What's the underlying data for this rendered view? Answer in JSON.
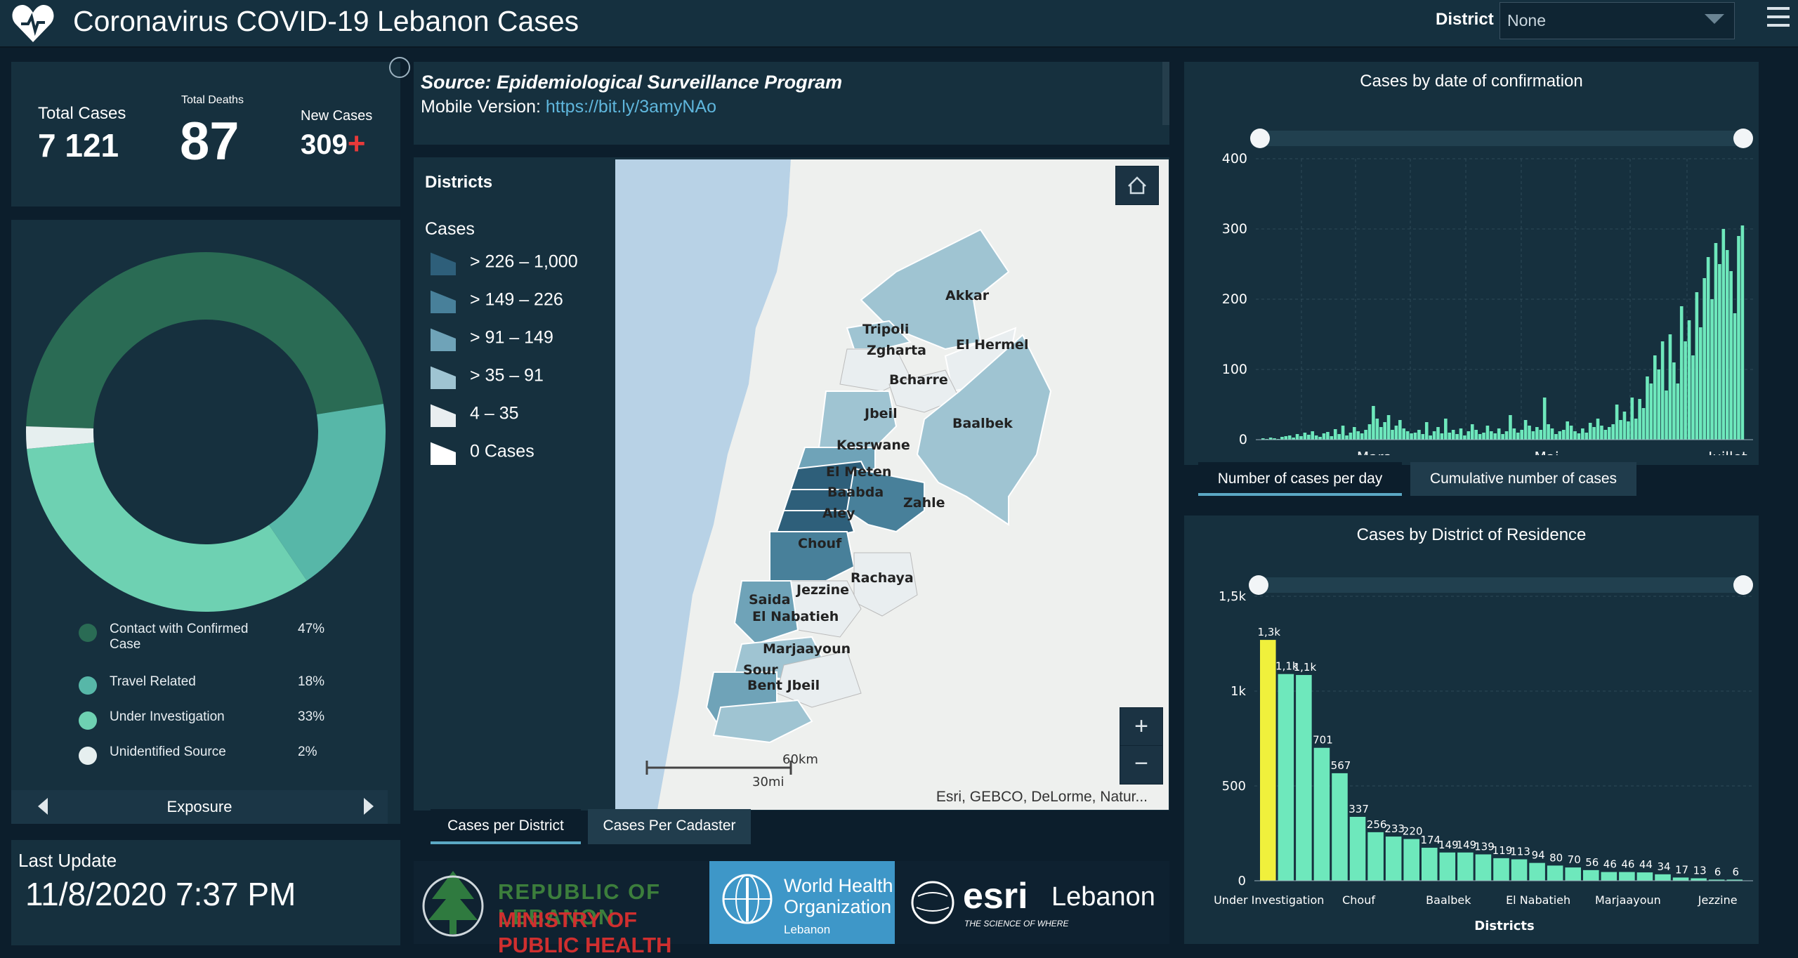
{
  "header": {
    "title": "Coronavirus COVID-19 Lebanon Cases",
    "district_label": "District",
    "district_value": "None"
  },
  "stats": {
    "total_cases_label": "Total Cases",
    "total_cases": "7 121",
    "total_deaths_label": "Total Deaths",
    "total_deaths": "87",
    "new_cases_label": "New Cases",
    "new_cases": "309",
    "new_cases_mark": "+"
  },
  "exposure": {
    "title": "Exposure",
    "items": [
      {
        "label": "Contact with Confirmed Case",
        "pct": "47%",
        "color": "#2a6b54"
      },
      {
        "label": "Travel Related",
        "pct": "18%",
        "color": "#57b7a8"
      },
      {
        "label": "Under Investigation",
        "pct": "33%",
        "color": "#6ed1b2"
      },
      {
        "label": "Unidentified Source",
        "pct": "2%",
        "color": "#e6efef"
      }
    ]
  },
  "last_update": {
    "label": "Last Update",
    "value": "11/8/2020 7:37 PM"
  },
  "source": {
    "title": "Source: Epidemiological Surveillance Program",
    "mobile_label": "Mobile Version:",
    "mobile_link": "https://bit.ly/3amyNAo"
  },
  "map": {
    "legend_title": "Districts",
    "legend_sub": "Cases",
    "legend": [
      {
        "label": "> 226 – 1,000",
        "color": "#2e5f7a"
      },
      {
        "label": "> 149 – 226",
        "color": "#48809a"
      },
      {
        "label": "> 91 – 149",
        "color": "#6fa3b8"
      },
      {
        "label": "> 35 – 91",
        "color": "#9fc4d2"
      },
      {
        "label": "4 – 35",
        "color": "#e9eef0"
      },
      {
        "label": "0 Cases",
        "color": "#ffffff"
      }
    ],
    "districts": [
      "Akkar",
      "Tripoli",
      "El Hermel",
      "Zgharta",
      "Bcharre",
      "Jbeil",
      "Baalbek",
      "Kesrwane",
      "El Meten",
      "Baabda",
      "Zahle",
      "Aley",
      "Chouf",
      "Rachaya",
      "Jezzine",
      "Saida",
      "El Nabatieh",
      "Marjaayoun",
      "Sour",
      "Bent Jbeil"
    ],
    "scale_km": "60km",
    "scale_mi": "30mi",
    "attribution": "Esri, GEBCO, DeLorme, Natur...",
    "zoom_in": "+",
    "zoom_out": "−",
    "tabs": [
      "Cases per District",
      "Cases Per Cadaster"
    ]
  },
  "logos": {
    "moh_line1": "REPUBLIC OF LEBANON",
    "moh_line2": "MINISTRY OF PUBLIC HEALTH",
    "who_line1": "World Health",
    "who_line2": "Organization",
    "who_line3": "Lebanon",
    "esri_word": "esri",
    "esri_country": "Lebanon",
    "esri_tag": "THE SCIENCE OF WHERE"
  },
  "chart_data": [
    {
      "type": "bar",
      "title": "Cases by  date of confirmation",
      "ylim": [
        0,
        400
      ],
      "y_ticks": [
        "400",
        "300",
        "200",
        "100",
        "0"
      ],
      "x_ticks": [
        "Mars",
        "Mai",
        "Juillet"
      ],
      "values": [
        2,
        1,
        3,
        2,
        1,
        4,
        5,
        6,
        3,
        8,
        5,
        10,
        7,
        12,
        6,
        4,
        9,
        11,
        5,
        15,
        8,
        20,
        6,
        10,
        18,
        12,
        9,
        14,
        22,
        48,
        30,
        18,
        25,
        35,
        14,
        20,
        28,
        16,
        12,
        9,
        10,
        14,
        8,
        25,
        6,
        12,
        18,
        9,
        30,
        10,
        14,
        8,
        16,
        6,
        12,
        22,
        14,
        8,
        10,
        20,
        12,
        9,
        16,
        8,
        12,
        35,
        16,
        10,
        14,
        28,
        20,
        12,
        18,
        14,
        60,
        22,
        16,
        8,
        12,
        14,
        26,
        20,
        12,
        9,
        16,
        10,
        24,
        18,
        30,
        20,
        14,
        18,
        22,
        50,
        28,
        40,
        26,
        60,
        30,
        58,
        45,
        90,
        80,
        120,
        100,
        140,
        70,
        150,
        110,
        80,
        190,
        140,
        170,
        120,
        210,
        160,
        230,
        260,
        200,
        280,
        250,
        300,
        270,
        240,
        180,
        290,
        305
      ],
      "tabs": [
        "Number of cases per day",
        "Cumulative number of cases"
      ]
    },
    {
      "type": "bar",
      "title": "Cases by District of Residence",
      "xlabel": "Districts",
      "ylim": [
        0,
        1500
      ],
      "y_ticks": [
        "1,5k",
        "1k",
        "500",
        "0"
      ],
      "x_tick_labels": [
        "Under Investigation",
        "Chouf",
        "Baalbek",
        "El Nabatieh",
        "Marjaayoun",
        "Jezzine"
      ],
      "value_labels": [
        "1,3k",
        "1,1k",
        "1,1k",
        "701",
        "567",
        "337",
        "256",
        "233",
        "220",
        "174",
        "149",
        "149",
        "139",
        "119",
        "113",
        "94",
        "80",
        "70",
        "56",
        "46",
        "46",
        "44",
        "34",
        "17",
        "13",
        "6",
        "6"
      ],
      "values": [
        1270,
        1090,
        1085,
        701,
        567,
        337,
        256,
        233,
        220,
        174,
        149,
        149,
        139,
        119,
        113,
        94,
        80,
        70,
        56,
        46,
        46,
        44,
        34,
        17,
        13,
        6,
        6
      ],
      "highlight_color": "#f0f03c",
      "bar_color": "#6ee8bc"
    }
  ]
}
